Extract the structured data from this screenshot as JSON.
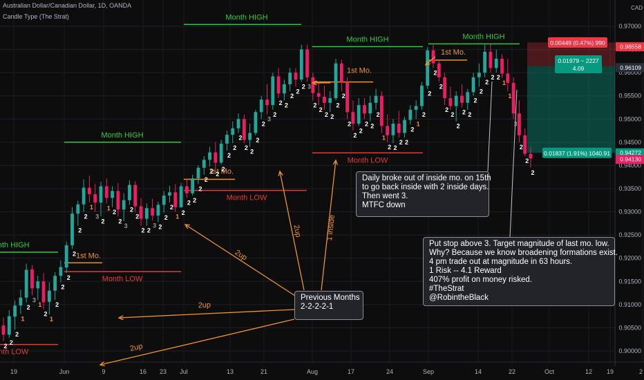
{
  "header": {
    "symbol_line": "Australian Dollar/Canadian Dollar, 1D, OANDA",
    "indicator_line": "Candle Type (The Strat)"
  },
  "currency_badge": "CAD",
  "colors": {
    "up": "#26a69a",
    "down": "#e91e63",
    "high": "#2ecc40",
    "low": "#e53935",
    "orange": "#f0932b",
    "bg": "#0d0d0d",
    "axis_text": "#b2b5be"
  },
  "chart_data": {
    "type": "candlestick",
    "x_ticks": [
      "19",
      "Jun",
      "9",
      "16",
      "23",
      "Jul",
      "13",
      "21",
      "Aug",
      "17",
      "24",
      "Sep",
      "14",
      "22",
      "Oct",
      "12",
      "19",
      "2"
    ],
    "y_ticks": [
      "0.97000",
      "0.96500",
      "0.96000",
      "0.95500",
      "0.95000",
      "0.94500",
      "0.94000",
      "0.93500",
      "0.93000",
      "0.92500",
      "0.92000",
      "0.91500",
      "0.91000",
      "0.90500",
      "0.90000"
    ],
    "ylim": [
      0.8986,
      0.9747
    ],
    "candles": [
      [
        0.9055,
        0.9072,
        0.9021,
        0.9035
      ],
      [
        0.9035,
        0.9088,
        0.9028,
        0.9075
      ],
      [
        0.9074,
        0.9109,
        0.9046,
        0.9098
      ],
      [
        0.9098,
        0.9132,
        0.908,
        0.9115
      ],
      [
        0.9115,
        0.9188,
        0.9104,
        0.9175
      ],
      [
        0.9176,
        0.9185,
        0.912,
        0.9135
      ],
      [
        0.9135,
        0.9162,
        0.911,
        0.915
      ],
      [
        0.915,
        0.9168,
        0.909,
        0.9105
      ],
      [
        0.9106,
        0.9148,
        0.9079,
        0.913
      ],
      [
        0.913,
        0.917,
        0.911,
        0.9162
      ],
      [
        0.9162,
        0.9195,
        0.9148,
        0.9181
      ],
      [
        0.918,
        0.9236,
        0.9168,
        0.9228
      ],
      [
        0.9228,
        0.931,
        0.922,
        0.9296
      ],
      [
        0.9296,
        0.9324,
        0.927,
        0.9316
      ],
      [
        0.9316,
        0.937,
        0.93,
        0.9352
      ],
      [
        0.9352,
        0.9378,
        0.932,
        0.9338
      ],
      [
        0.9338,
        0.936,
        0.93,
        0.932
      ],
      [
        0.932,
        0.9365,
        0.929,
        0.9355
      ],
      [
        0.9355,
        0.9372,
        0.9318,
        0.933
      ],
      [
        0.933,
        0.9355,
        0.931,
        0.9345
      ],
      [
        0.9345,
        0.9362,
        0.929,
        0.9305
      ],
      [
        0.9305,
        0.934,
        0.928,
        0.9325
      ],
      [
        0.9325,
        0.9368,
        0.9315,
        0.9358
      ],
      [
        0.9358,
        0.9366,
        0.93,
        0.9312
      ],
      [
        0.9312,
        0.933,
        0.927,
        0.9285
      ],
      [
        0.9285,
        0.9318,
        0.927,
        0.9308
      ],
      [
        0.9308,
        0.9328,
        0.9281,
        0.9292
      ],
      [
        0.9292,
        0.9322,
        0.9278,
        0.9315
      ],
      [
        0.9315,
        0.9345,
        0.9298,
        0.9335
      ],
      [
        0.9335,
        0.9356,
        0.932,
        0.9342
      ],
      [
        0.9342,
        0.936,
        0.93,
        0.931
      ],
      [
        0.931,
        0.9362,
        0.9308,
        0.9355
      ],
      [
        0.9355,
        0.937,
        0.933,
        0.934
      ],
      [
        0.934,
        0.938,
        0.9335,
        0.9372
      ],
      [
        0.9372,
        0.94,
        0.936,
        0.9395
      ],
      [
        0.9395,
        0.942,
        0.938,
        0.9412
      ],
      [
        0.9412,
        0.944,
        0.9398,
        0.9428
      ],
      [
        0.9428,
        0.945,
        0.9392,
        0.9406
      ],
      [
        0.9406,
        0.9455,
        0.9402,
        0.9447
      ],
      [
        0.9447,
        0.9475,
        0.9432,
        0.9466
      ],
      [
        0.9466,
        0.9495,
        0.9448,
        0.948
      ],
      [
        0.948,
        0.9512,
        0.947,
        0.95
      ],
      [
        0.95,
        0.951,
        0.9448,
        0.9455
      ],
      [
        0.9455,
        0.949,
        0.944,
        0.947
      ],
      [
        0.947,
        0.952,
        0.9465,
        0.9515
      ],
      [
        0.9515,
        0.955,
        0.95,
        0.9542
      ],
      [
        0.9542,
        0.9575,
        0.951,
        0.953
      ],
      [
        0.953,
        0.96,
        0.952,
        0.9592
      ],
      [
        0.9592,
        0.961,
        0.9545,
        0.9555
      ],
      [
        0.9555,
        0.9585,
        0.954,
        0.9575
      ],
      [
        0.9575,
        0.961,
        0.956,
        0.96
      ],
      [
        0.96,
        0.961,
        0.957,
        0.9585
      ],
      [
        0.9585,
        0.966,
        0.958,
        0.965
      ],
      [
        0.965,
        0.966,
        0.958,
        0.959
      ],
      [
        0.959,
        0.96,
        0.954,
        0.9556
      ],
      [
        0.9556,
        0.958,
        0.953,
        0.9548
      ],
      [
        0.9548,
        0.9572,
        0.952,
        0.9535
      ],
      [
        0.9535,
        0.956,
        0.9515,
        0.9545
      ],
      [
        0.9545,
        0.963,
        0.954,
        0.962
      ],
      [
        0.962,
        0.9628,
        0.956,
        0.958
      ],
      [
        0.958,
        0.959,
        0.95,
        0.9515
      ],
      [
        0.9515,
        0.954,
        0.9475,
        0.949
      ],
      [
        0.949,
        0.9545,
        0.9485,
        0.953
      ],
      [
        0.953,
        0.9545,
        0.95,
        0.9512
      ],
      [
        0.9512,
        0.955,
        0.9495,
        0.9535
      ],
      [
        0.9535,
        0.9565,
        0.952,
        0.955
      ],
      [
        0.955,
        0.956,
        0.947,
        0.9485
      ],
      [
        0.9485,
        0.951,
        0.945,
        0.9465
      ],
      [
        0.9465,
        0.95,
        0.9448,
        0.949
      ],
      [
        0.949,
        0.9518,
        0.946,
        0.947
      ],
      [
        0.947,
        0.9505,
        0.946,
        0.9498
      ],
      [
        0.9498,
        0.953,
        0.9488,
        0.952
      ],
      [
        0.952,
        0.954,
        0.95,
        0.9528
      ],
      [
        0.9528,
        0.958,
        0.952,
        0.9572
      ],
      [
        0.9572,
        0.9655,
        0.9565,
        0.9648
      ],
      [
        0.9648,
        0.966,
        0.961,
        0.962
      ],
      [
        0.962,
        0.9625,
        0.958,
        0.959
      ],
      [
        0.959,
        0.96,
        0.953,
        0.9545
      ],
      [
        0.9545,
        0.957,
        0.952,
        0.9528
      ],
      [
        0.9528,
        0.956,
        0.9495,
        0.955
      ],
      [
        0.955,
        0.9575,
        0.9525,
        0.9535
      ],
      [
        0.9535,
        0.9565,
        0.952,
        0.9558
      ],
      [
        0.9558,
        0.96,
        0.955,
        0.959
      ],
      [
        0.959,
        0.962,
        0.957,
        0.96
      ],
      [
        0.96,
        0.966,
        0.959,
        0.9645
      ],
      [
        0.9645,
        0.9662,
        0.96,
        0.961
      ],
      [
        0.961,
        0.965,
        0.96,
        0.963
      ],
      [
        0.963,
        0.964,
        0.9588,
        0.9598
      ],
      [
        0.9598,
        0.963,
        0.956,
        0.9578
      ],
      [
        0.9578,
        0.959,
        0.95,
        0.9512
      ],
      [
        0.9512,
        0.954,
        0.945,
        0.9465
      ],
      [
        0.9465,
        0.948,
        0.942,
        0.9425
      ],
      [
        0.9425,
        0.944,
        0.9395,
        0.9415
      ]
    ],
    "candle_labels": [
      "2",
      "2",
      "2",
      "1",
      "2",
      "3",
      "1",
      "2",
      "1",
      "2",
      "2",
      "2",
      "2",
      "2",
      "2",
      "1",
      "3",
      "2",
      "1",
      "2",
      "2",
      "3",
      "2",
      "2",
      "2",
      "2",
      "3",
      "2",
      "2",
      "2",
      "1",
      "2",
      "2",
      "2",
      "2",
      "2",
      "2",
      "2",
      "2",
      "2",
      "2",
      "2",
      "2",
      "2",
      "2",
      "2",
      "3",
      "2",
      "2",
      "2",
      "2",
      "2",
      "2",
      "3",
      "2",
      "2",
      "2",
      "2",
      "2",
      "2",
      "2",
      "2",
      "2",
      "2",
      "2",
      "2",
      "1",
      "2",
      "2",
      "2",
      "2",
      "2",
      "1",
      "2",
      "2",
      "2",
      "2",
      "2",
      "2",
      "2",
      "2",
      "2",
      "2",
      "2",
      "2",
      "2",
      "2",
      "1",
      "1",
      "3",
      "2",
      "2",
      "2"
    ],
    "levels": [
      {
        "label": "Month HIGH",
        "value": 0.9704,
        "from": 266,
        "to": 436,
        "kind": "high"
      },
      {
        "label": "Month HIGH",
        "value": 0.9656,
        "from": 452,
        "to": 612,
        "kind": "high"
      },
      {
        "label": "Month HIGH",
        "value": 0.9662,
        "from": 620,
        "to": 752,
        "kind": "high"
      },
      {
        "label": "Month HIGH",
        "value": 0.945,
        "from": 93,
        "to": 262,
        "kind": "high"
      },
      {
        "label": "Month HIGH",
        "value": 0.9213,
        "from": 0,
        "to": 84,
        "kind": "high"
      },
      {
        "label": "Month LOW",
        "value": 0.9427,
        "from": 452,
        "to": 612,
        "kind": "low"
      },
      {
        "label": "Month LOW",
        "value": 0.9346,
        "from": 266,
        "to": 444,
        "kind": "low"
      },
      {
        "label": "Month LOW",
        "value": 0.9171,
        "from": 93,
        "to": 262,
        "kind": "low"
      },
      {
        "label": "Month LOW",
        "value": 0.9014,
        "from": 0,
        "to": 84,
        "kind": "low"
      }
    ],
    "first_month_labels": [
      "1st Mo.",
      "1st Mo.",
      "1st Mo.",
      "1st Mo."
    ],
    "arrow_labels": [
      "2up",
      "2up",
      "2up",
      "2up",
      "1 inside"
    ],
    "price_tags": [
      {
        "text": "0.00449 (0.47%) 990",
        "value": 0.9665,
        "color": "#f23645"
      },
      {
        "text": "0.01979 ~ 2227",
        "sub": "4.09",
        "value": 0.9618,
        "color": "#089981"
      },
      {
        "text": "0.01837 (1.91%) 1040.91",
        "value": 0.9427,
        "color": "#089981"
      }
    ],
    "price_axis_tags": [
      {
        "text": "0.96558",
        "value": 0.96558,
        "color": "#f23645"
      },
      {
        "text": "0.96109",
        "value": 0.96109,
        "color": "#2a2e39"
      },
      {
        "text": "0.94272",
        "value": 0.94272,
        "color": "#089981"
      },
      {
        "text": "0.94130",
        "value": 0.9413,
        "color": "#e91e63"
      }
    ],
    "notes": [
      {
        "lines": [
          "Daily broke out of inside mo. on 15th",
          "to go back inside with 2 inside days.",
          "Then went 3.",
          "MTFC down"
        ]
      },
      {
        "lines": [
          "Previous Months",
          "2-2-2-2-1"
        ]
      },
      {
        "lines": [
          "Put stop above 3. Target magnitude of last mo. low.",
          "Why? Because we know broadening formations exist.",
          "4 pm trade out at magnitude in 63 hours.",
          "1 Risk -- 4.1 Reward",
          "407% profit on money risked.",
          "#TheStrat",
          "@RobintheBlack"
        ]
      }
    ]
  }
}
